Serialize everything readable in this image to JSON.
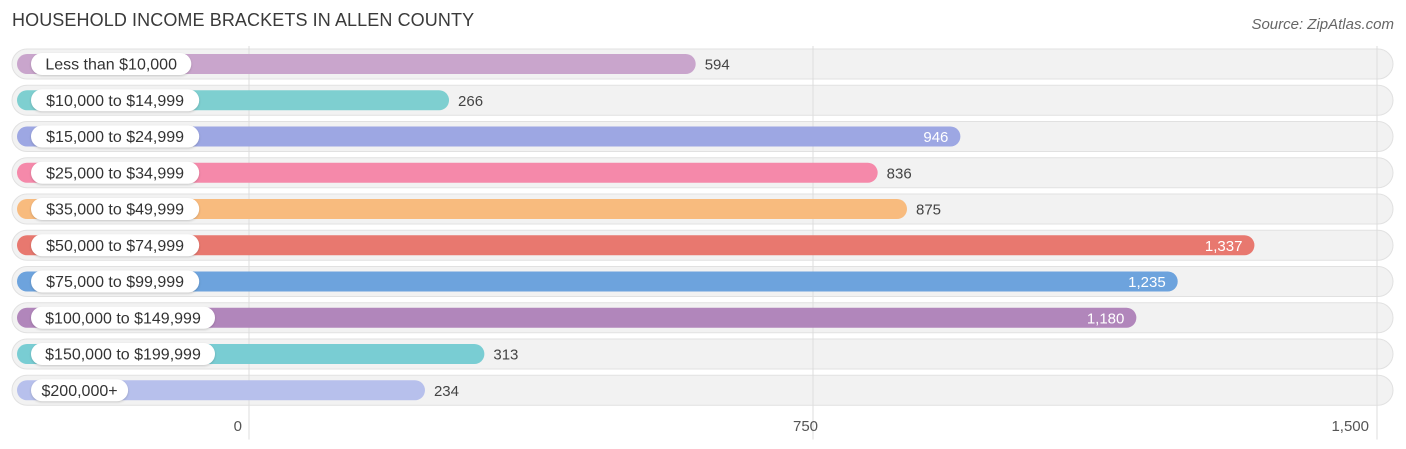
{
  "title": "HOUSEHOLD INCOME BRACKETS IN ALLEN COUNTY",
  "source": "Source: ZipAtlas.com",
  "chart_data": {
    "type": "bar",
    "orientation": "horizontal",
    "title": "HOUSEHOLD INCOME BRACKETS IN ALLEN COUNTY",
    "categories": [
      "Less than $10,000",
      "$10,000 to $14,999",
      "$15,000 to $24,999",
      "$25,000 to $34,999",
      "$35,000 to $49,999",
      "$50,000 to $74,999",
      "$75,000 to $99,999",
      "$100,000 to $149,999",
      "$150,000 to $199,999",
      "$200,000+"
    ],
    "values": [
      594,
      266,
      946,
      836,
      875,
      1337,
      1235,
      1180,
      313,
      234
    ],
    "value_labels": [
      "594",
      "266",
      "946",
      "836",
      "875",
      "1,337",
      "1,235",
      "1,180",
      "313",
      "234"
    ],
    "colors": [
      "#c9a5cc",
      "#7ecfd0",
      "#9da7e3",
      "#f589aa",
      "#f8bb7e",
      "#e8786f",
      "#6da3dd",
      "#b186bb",
      "#79cdd3",
      "#b7c0ec"
    ],
    "xlim": [
      0,
      1500
    ],
    "x_ticks": [
      0,
      750,
      1500
    ],
    "x_tick_labels": [
      "0",
      "750",
      "1,500"
    ],
    "grid": true,
    "legend": "none"
  }
}
